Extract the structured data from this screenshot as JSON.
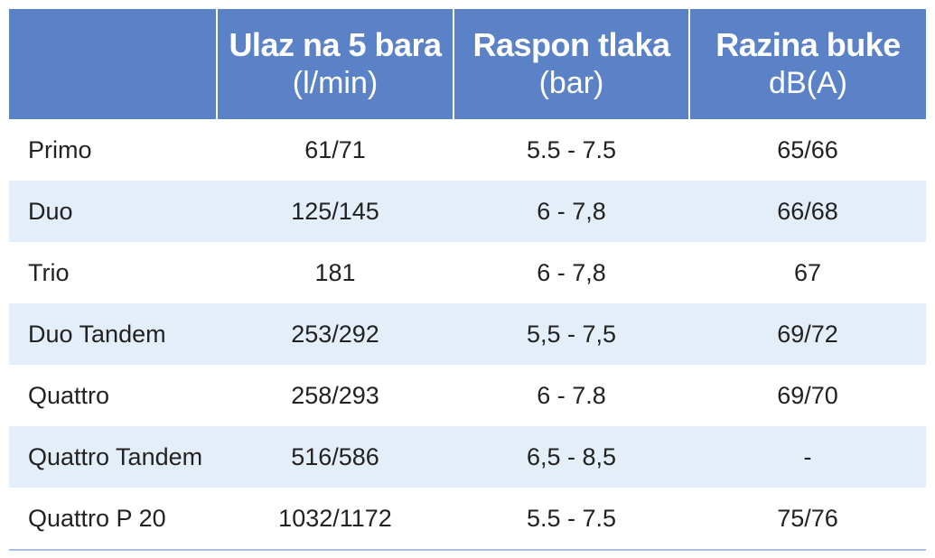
{
  "header": {
    "col0": "",
    "col1": {
      "main": "Ulaz na 5 bara",
      "unit": "(l/min)"
    },
    "col2": {
      "main": "Raspon tlaka",
      "unit": "(bar)"
    },
    "col3": {
      "main": "Razina buke",
      "unit": "dB(A)"
    }
  },
  "rows": [
    {
      "name": "Primo",
      "flow": "61/71",
      "pressure": "5.5 - 7.5",
      "noise": "65/66"
    },
    {
      "name": "Duo",
      "flow": "125/145",
      "pressure": "6 - 7,8",
      "noise": "66/68"
    },
    {
      "name": "Trio",
      "flow": "181",
      "pressure": "6 - 7,8",
      "noise": "67"
    },
    {
      "name": "Duo Tandem",
      "flow": "253/292",
      "pressure": "5,5 - 7,5",
      "noise": "69/72"
    },
    {
      "name": "Quattro",
      "flow": "258/293",
      "pressure": "6 - 7.8",
      "noise": "69/70"
    },
    {
      "name": "Quattro Tandem",
      "flow": "516/586",
      "pressure": "6,5 - 8,5",
      "noise": "-"
    },
    {
      "name": "Quattro P 20",
      "flow": "1032/1172",
      "pressure": "5.5 - 7.5",
      "noise": "75/76"
    }
  ],
  "colors": {
    "header_bg": "#5b82c6",
    "stripe_bg": "#e3eef8",
    "rule": "#a8bde0"
  }
}
